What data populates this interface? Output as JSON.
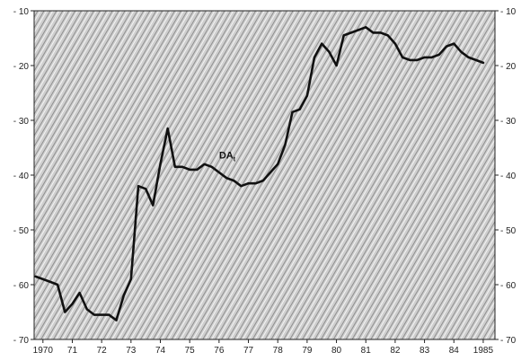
{
  "chart_data": {
    "type": "line",
    "title": "",
    "xlabel": "",
    "ylabel": "",
    "xlim": [
      1969.7,
      1985.4
    ],
    "ylim": [
      -70,
      -10
    ],
    "x_ticks": [
      1970,
      1971,
      1972,
      1973,
      1974,
      1975,
      1976,
      1977,
      1978,
      1979,
      1980,
      1981,
      1982,
      1983,
      1984,
      1985
    ],
    "x_tick_labels": [
      "1970",
      "71",
      "72",
      "73",
      "74",
      "75",
      "76",
      "77",
      "78",
      "79",
      "80",
      "81",
      "82",
      "83",
      "84",
      "1985"
    ],
    "y_ticks": [
      -10,
      -20,
      -30,
      -40,
      -50,
      -60,
      -70
    ],
    "y_tick_labels": [
      "- 10",
      "- 20",
      "- 30",
      "- 40",
      "- 50",
      "- 60",
      "- 70"
    ],
    "grid": false,
    "colors": {
      "line": "#111111",
      "background": "#bdbdbd"
    },
    "series": [
      {
        "name": "DA",
        "subscript": "t",
        "label_at": {
          "x": 1976.0,
          "y": -37
        },
        "x": [
          1969.75,
          1970.0,
          1970.25,
          1970.5,
          1970.75,
          1971.0,
          1971.25,
          1971.5,
          1971.75,
          1972.0,
          1972.25,
          1972.5,
          1972.75,
          1973.0,
          1973.25,
          1973.5,
          1973.75,
          1974.0,
          1974.25,
          1974.5,
          1974.75,
          1975.0,
          1975.25,
          1975.5,
          1975.75,
          1976.0,
          1976.25,
          1976.5,
          1976.75,
          1977.0,
          1977.25,
          1977.5,
          1977.75,
          1978.0,
          1978.25,
          1978.5,
          1978.75,
          1979.0,
          1979.25,
          1979.5,
          1979.75,
          1980.0,
          1980.25,
          1980.5,
          1980.75,
          1981.0,
          1981.25,
          1981.5,
          1981.75,
          1982.0,
          1982.25,
          1982.5,
          1982.75,
          1983.0,
          1983.25,
          1983.5,
          1983.75,
          1984.0,
          1984.25,
          1984.5,
          1984.75,
          1985.0
        ],
        "y": [
          -58.5,
          -59.0,
          -59.5,
          -60.0,
          -65.0,
          -63.5,
          -61.5,
          -64.5,
          -65.5,
          -65.5,
          -65.5,
          -66.5,
          -62.0,
          -59.0,
          -42.0,
          -42.5,
          -45.5,
          -38.0,
          -31.5,
          -38.5,
          -38.5,
          -39.0,
          -39.0,
          -38.0,
          -38.5,
          -39.5,
          -40.5,
          -41.0,
          -42.0,
          -41.5,
          -41.5,
          -41.0,
          -39.5,
          -38.0,
          -34.5,
          -28.5,
          -28.0,
          -25.5,
          -18.5,
          -16.0,
          -17.5,
          -20.0,
          -14.5,
          -14.0,
          -13.5,
          -13.0,
          -14.0,
          -14.0,
          -14.5,
          -16.0,
          -18.5,
          -19.0,
          -19.0,
          -18.5,
          -18.5,
          -18.0,
          -16.5,
          -16.0,
          -17.5,
          -18.5,
          -19.0,
          -19.5
        ]
      }
    ]
  }
}
